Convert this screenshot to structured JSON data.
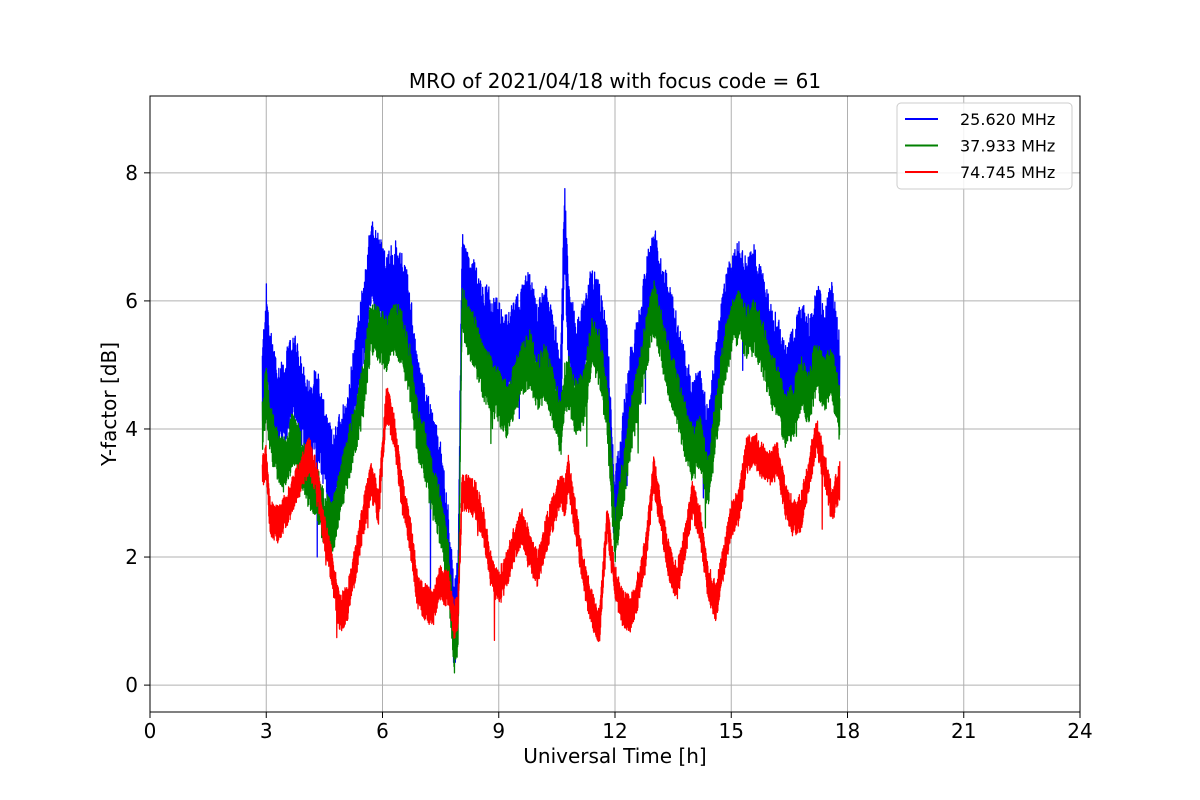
{
  "chart_data": {
    "type": "line",
    "title": "MRO of 2021/04/18 with focus code = 61",
    "xlabel": "Universal Time [h]",
    "ylabel": "Y-factor [dB]",
    "xlim": [
      0,
      24
    ],
    "ylim": [
      -0.42,
      9.2
    ],
    "xticks": [
      0,
      3,
      6,
      9,
      12,
      15,
      18,
      21,
      24
    ],
    "yticks": [
      0,
      2,
      4,
      6,
      8
    ],
    "grid": true,
    "legend_position": "top-right",
    "series": [
      {
        "name": "25.620 MHz",
        "color": "#0000ff",
        "x": [
          2.9,
          3.0,
          3.1,
          3.3,
          3.5,
          3.7,
          3.9,
          4.1,
          4.3,
          4.5,
          4.7,
          4.9,
          5.1,
          5.3,
          5.5,
          5.7,
          5.9,
          6.1,
          6.3,
          6.5,
          6.7,
          6.9,
          7.1,
          7.3,
          7.5,
          7.7,
          7.85,
          7.95,
          8.05,
          8.2,
          8.4,
          8.6,
          8.8,
          9.0,
          9.2,
          9.4,
          9.6,
          9.8,
          10.0,
          10.2,
          10.4,
          10.6,
          10.7,
          10.8,
          11.0,
          11.2,
          11.4,
          11.6,
          11.8,
          12.0,
          12.2,
          12.4,
          12.6,
          12.8,
          13.0,
          13.2,
          13.4,
          13.6,
          13.8,
          14.0,
          14.2,
          14.4,
          14.6,
          14.8,
          15.0,
          15.2,
          15.4,
          15.6,
          15.8,
          16.0,
          16.2,
          16.4,
          16.6,
          16.8,
          17.0,
          17.2,
          17.4,
          17.6,
          17.8
        ],
        "y": [
          4.6,
          5.6,
          4.9,
          4.3,
          4.5,
          4.9,
          4.4,
          4.1,
          4.3,
          3.7,
          3.3,
          3.6,
          3.9,
          4.8,
          5.6,
          6.6,
          6.4,
          6.0,
          6.3,
          6.1,
          5.6,
          4.5,
          4.0,
          3.6,
          3.1,
          2.1,
          0.9,
          1.4,
          6.4,
          6.1,
          5.9,
          5.6,
          5.5,
          5.3,
          5.1,
          5.3,
          5.6,
          5.8,
          5.3,
          5.6,
          5.1,
          4.6,
          7.2,
          5.6,
          5.1,
          5.3,
          5.9,
          5.6,
          4.9,
          2.6,
          3.6,
          4.6,
          5.1,
          5.9,
          6.6,
          6.0,
          5.6,
          5.1,
          4.6,
          4.1,
          4.3,
          3.6,
          4.6,
          5.6,
          6.1,
          6.3,
          6.0,
          6.2,
          5.8,
          5.3,
          5.1,
          4.6,
          4.9,
          5.3,
          5.1,
          5.6,
          5.3,
          5.6,
          4.8
        ],
        "amplitude": 0.7
      },
      {
        "name": "37.933 MHz",
        "color": "#008000",
        "x": [
          2.9,
          3.0,
          3.1,
          3.3,
          3.5,
          3.7,
          3.9,
          4.1,
          4.3,
          4.5,
          4.7,
          4.9,
          5.1,
          5.3,
          5.5,
          5.7,
          5.9,
          6.1,
          6.3,
          6.5,
          6.7,
          6.9,
          7.1,
          7.3,
          7.5,
          7.7,
          7.85,
          7.95,
          8.05,
          8.2,
          8.4,
          8.6,
          8.8,
          9.0,
          9.2,
          9.4,
          9.6,
          9.8,
          10.0,
          10.2,
          10.4,
          10.6,
          10.7,
          10.8,
          11.0,
          11.2,
          11.4,
          11.6,
          11.8,
          12.0,
          12.2,
          12.4,
          12.6,
          12.8,
          13.0,
          13.2,
          13.4,
          13.6,
          13.8,
          14.0,
          14.2,
          14.4,
          14.6,
          14.8,
          15.0,
          15.2,
          15.4,
          15.6,
          15.8,
          16.0,
          16.2,
          16.4,
          16.6,
          16.8,
          17.0,
          17.2,
          17.4,
          17.6,
          17.8
        ],
        "y": [
          4.0,
          4.6,
          4.0,
          3.6,
          3.4,
          3.9,
          3.5,
          3.2,
          3.0,
          2.6,
          2.4,
          3.0,
          3.5,
          4.0,
          4.6,
          5.6,
          5.5,
          5.3,
          5.6,
          5.4,
          4.9,
          4.0,
          3.6,
          3.0,
          2.6,
          1.8,
          0.6,
          0.8,
          5.9,
          5.6,
          5.3,
          4.9,
          4.7,
          4.5,
          4.3,
          4.6,
          4.9,
          5.1,
          4.7,
          4.9,
          4.5,
          4.0,
          4.6,
          4.7,
          4.3,
          4.5,
          5.3,
          5.1,
          4.3,
          2.3,
          3.1,
          4.0,
          4.6,
          5.3,
          5.9,
          5.4,
          4.9,
          4.5,
          4.0,
          3.6,
          3.8,
          3.1,
          4.1,
          5.0,
          5.6,
          5.8,
          5.5,
          5.6,
          5.3,
          4.8,
          4.6,
          4.1,
          4.3,
          4.7,
          4.5,
          5.0,
          4.7,
          4.9,
          4.2
        ],
        "amplitude": 0.45
      },
      {
        "name": "74.745 MHz",
        "color": "#ff0000",
        "x": [
          2.9,
          3.0,
          3.1,
          3.3,
          3.5,
          3.7,
          3.9,
          4.1,
          4.3,
          4.5,
          4.7,
          4.9,
          5.1,
          5.3,
          5.5,
          5.7,
          5.9,
          6.1,
          6.3,
          6.5,
          6.7,
          6.9,
          7.1,
          7.3,
          7.5,
          7.7,
          7.85,
          7.95,
          8.05,
          8.2,
          8.4,
          8.6,
          8.8,
          9.0,
          9.2,
          9.4,
          9.6,
          9.8,
          10.0,
          10.2,
          10.4,
          10.6,
          10.7,
          10.8,
          11.0,
          11.2,
          11.4,
          11.6,
          11.8,
          12.0,
          12.2,
          12.4,
          12.6,
          12.8,
          13.0,
          13.2,
          13.4,
          13.6,
          13.8,
          14.0,
          14.2,
          14.4,
          14.6,
          14.8,
          15.0,
          15.2,
          15.4,
          15.6,
          15.8,
          16.0,
          16.2,
          16.4,
          16.6,
          16.8,
          17.0,
          17.2,
          17.4,
          17.6,
          17.8
        ],
        "y": [
          3.3,
          3.5,
          2.6,
          2.5,
          2.7,
          3.0,
          3.3,
          3.6,
          3.2,
          2.4,
          1.8,
          1.1,
          1.3,
          1.9,
          2.6,
          3.2,
          2.8,
          4.4,
          4.0,
          3.0,
          2.4,
          1.5,
          1.3,
          1.2,
          1.6,
          1.5,
          1.0,
          1.2,
          3.0,
          3.0,
          2.9,
          2.5,
          1.8,
          1.5,
          1.8,
          2.2,
          2.5,
          2.1,
          1.8,
          2.3,
          2.7,
          3.1,
          2.9,
          3.3,
          2.5,
          1.7,
          1.2,
          0.9,
          2.6,
          1.6,
          1.2,
          1.1,
          1.5,
          2.1,
          3.3,
          2.6,
          1.9,
          1.6,
          2.2,
          2.9,
          2.5,
          1.6,
          1.3,
          1.9,
          2.6,
          2.8,
          3.6,
          3.7,
          3.5,
          3.4,
          3.5,
          2.9,
          2.6,
          2.7,
          3.3,
          3.9,
          3.4,
          2.8,
          3.2
        ],
        "amplitude": 0.3
      }
    ]
  }
}
